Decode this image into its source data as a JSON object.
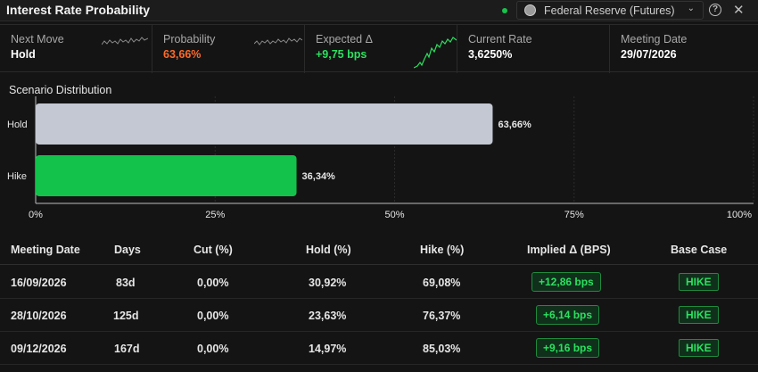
{
  "header": {
    "title": "Interest Rate Probability",
    "source_select": "Federal Reserve (Futures)",
    "live_color": "#19c24a"
  },
  "metrics": [
    {
      "label": "Next Move",
      "value": "Hold",
      "color": "#ffffff"
    },
    {
      "label": "Probability",
      "value": "63,66%",
      "color": "#ff6a2b"
    },
    {
      "label": "Expected Δ",
      "value": "+9,75 bps",
      "color": "#2ce060"
    },
    {
      "label": "Current Rate",
      "value": "3,6250%",
      "color": "#ffffff"
    },
    {
      "label": "Meeting Date",
      "value": "29/07/2026",
      "color": "#ffffff"
    }
  ],
  "scenario": {
    "title": "Scenario Distribution"
  },
  "chart_data": {
    "type": "bar",
    "orientation": "horizontal",
    "categories": [
      "Hold",
      "Hike"
    ],
    "values": [
      63.66,
      36.34
    ],
    "data_labels": [
      "63,66%",
      "36,34%"
    ],
    "colors": [
      "#c4c8d3",
      "#13c24a"
    ],
    "xlim": [
      0,
      100
    ],
    "ticks": [
      0,
      25,
      50,
      75,
      100
    ],
    "tick_labels": [
      "0%",
      "25%",
      "50%",
      "75%",
      "100%"
    ],
    "grid": true
  },
  "table": {
    "headers": [
      "Meeting Date",
      "Days",
      "Cut (%)",
      "Hold (%)",
      "Hike (%)",
      "Implied Δ (BPS)",
      "Base Case"
    ],
    "rows": [
      {
        "date": "16/09/2026",
        "days": "83d",
        "cut": "0,00%",
        "hold": "30,92%",
        "hike": "69,08%",
        "implied": "+12,86 bps",
        "base": "HIKE"
      },
      {
        "date": "28/10/2026",
        "days": "125d",
        "cut": "0,00%",
        "hold": "23,63%",
        "hike": "76,37%",
        "implied": "+6,14 bps",
        "base": "HIKE"
      },
      {
        "date": "09/12/2026",
        "days": "167d",
        "cut": "0,00%",
        "hold": "14,97%",
        "hike": "85,03%",
        "implied": "+9,16 bps",
        "base": "HIKE"
      }
    ]
  }
}
